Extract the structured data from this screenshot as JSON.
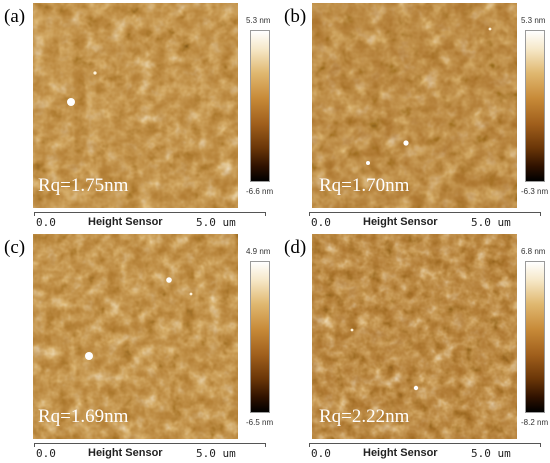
{
  "figure": {
    "panels": [
      {
        "letter": "(a)",
        "rq": "Rq=1.75nm",
        "scale_max": "5.3 nm",
        "scale_min": "-6.6 nm",
        "axis_start": "0.0",
        "axis_title": "Height Sensor",
        "axis_end": "5.0 um"
      },
      {
        "letter": "(b)",
        "rq": "Rq=1.70nm",
        "scale_max": "5.3 nm",
        "scale_min": "-6.3 nm",
        "axis_start": "0.0",
        "axis_title": "Height Sensor",
        "axis_end": "5.0 um"
      },
      {
        "letter": "(c)",
        "rq": "Rq=1.69nm",
        "scale_max": "4.9 nm",
        "scale_min": "-6.5 nm",
        "axis_start": "0.0",
        "axis_title": "Height Sensor",
        "axis_end": "5.0 um"
      },
      {
        "letter": "(d)",
        "rq": "Rq=2.22nm",
        "scale_max": "6.8 nm",
        "scale_min": "-8.2 nm",
        "axis_start": "0.0",
        "axis_title": "Height Sensor",
        "axis_end": "5.0 um"
      }
    ],
    "colormap": [
      "#000000",
      "#301200",
      "#6a3608",
      "#a05f1c",
      "#c78a38",
      "#e0b870",
      "#f6e8c8",
      "#ffffff"
    ]
  }
}
